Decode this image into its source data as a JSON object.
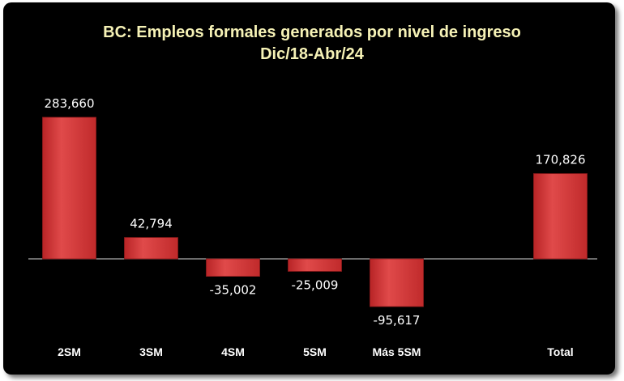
{
  "chart_data": {
    "type": "bar",
    "title": "BC: Empleos formales generados por nivel de ingreso",
    "subtitle": "Dic/18-Abr/24",
    "categories": [
      "2SM",
      "3SM",
      "4SM",
      "5SM",
      "Más 5SM",
      "",
      "Total"
    ],
    "values": [
      283660,
      42794,
      -35002,
      -25009,
      -95617,
      null,
      170826
    ],
    "data_labels": [
      "283,660",
      "42,794",
      "-35,002",
      "-25,009",
      "-95,617",
      "",
      "170,826"
    ],
    "bar_color": "#d8393a",
    "background": "#000000",
    "grid": false,
    "legend": "none"
  }
}
